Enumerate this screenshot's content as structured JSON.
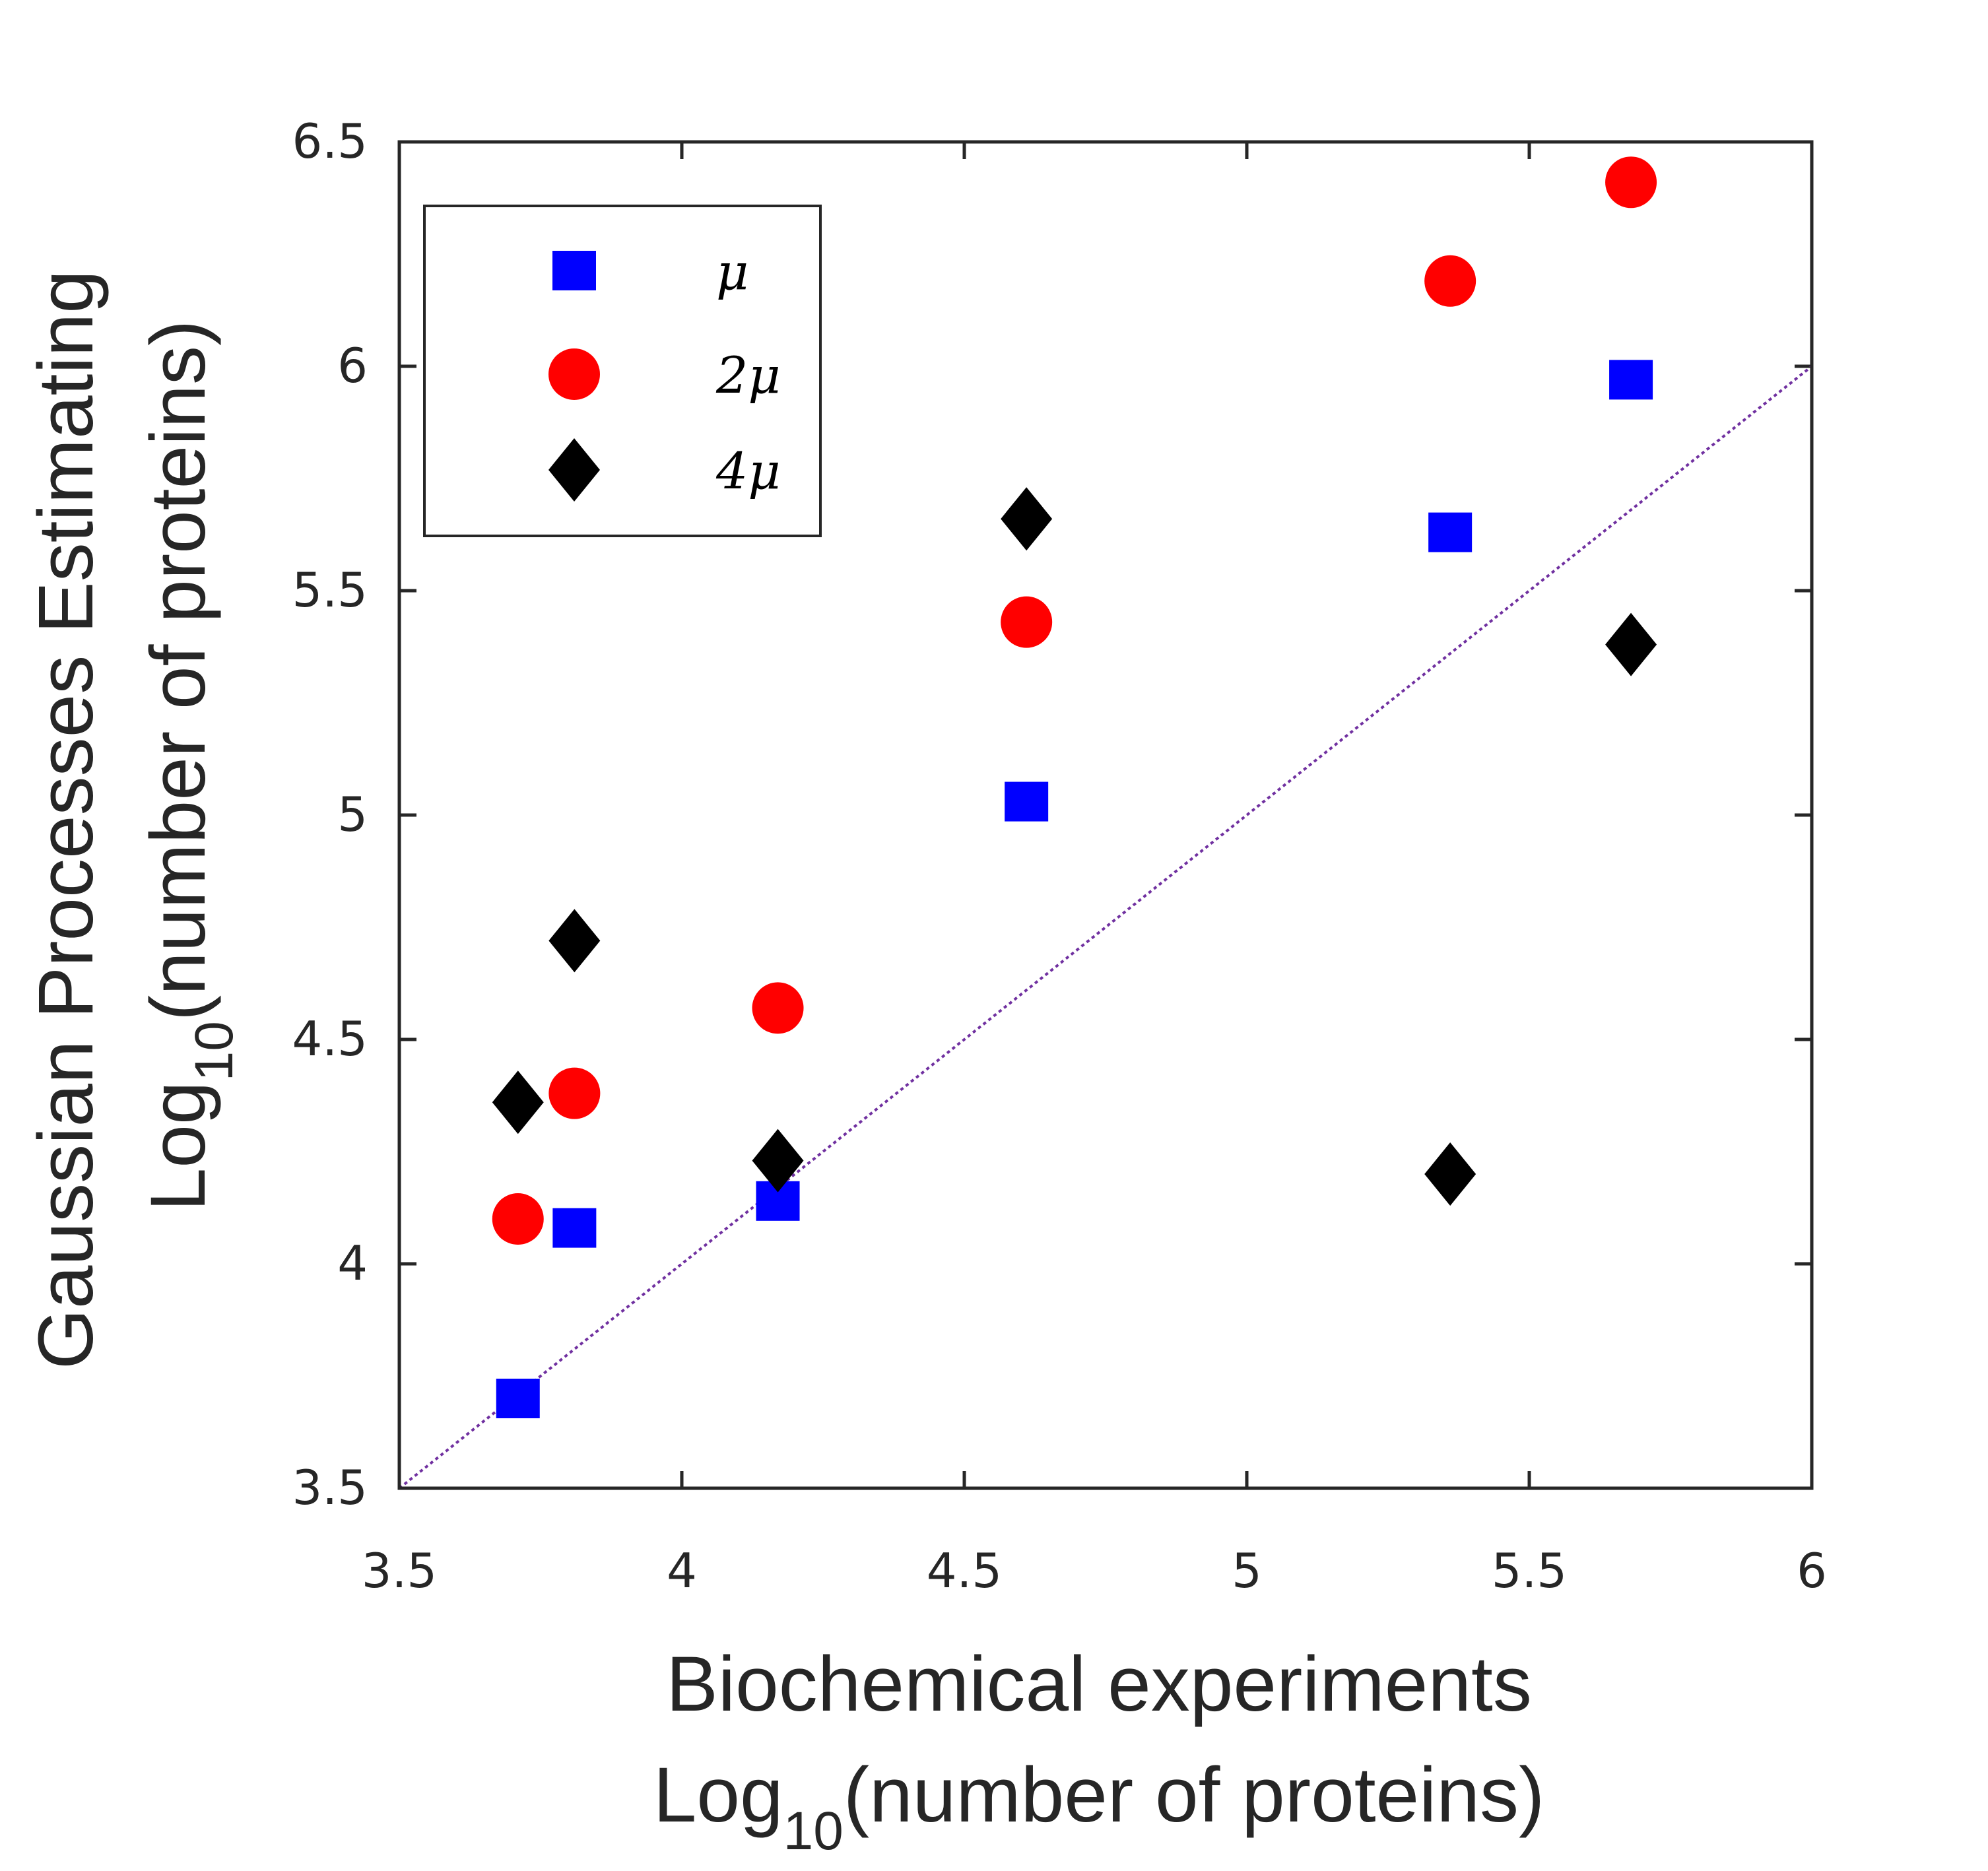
{
  "chart_data": {
    "type": "scatter",
    "title": "",
    "xlabel": {
      "line1": "Biochemical experiments",
      "line2_prefix": "Log",
      "line2_sub": "10",
      "line2_suffix": "(number of proteins)"
    },
    "ylabel": {
      "line1": "Gaussian Processes Estimating",
      "line2_prefix": "Log",
      "line2_sub": "10",
      "line2_suffix": "(number of proteins)"
    },
    "xlim": [
      3.5,
      6
    ],
    "ylim": [
      3.5,
      6.5
    ],
    "xticks": [
      "3.5",
      "4",
      "4.5",
      "5",
      "5.5",
      "6"
    ],
    "yticks": [
      "3.5",
      "4",
      "4.5",
      "5",
      "5.5",
      "6",
      "6.5"
    ],
    "grid": false,
    "legend": {
      "placement": "top-left",
      "box": true
    },
    "reference_line": {
      "from": [
        3.5,
        3.5
      ],
      "to": [
        6,
        6
      ],
      "color": "#7030a0",
      "style": "dotted"
    },
    "series": [
      {
        "name": "μ",
        "marker": "square",
        "color": "#0000ff",
        "points": [
          [
            3.71,
            3.7
          ],
          [
            3.81,
            4.08
          ],
          [
            4.17,
            4.14
          ],
          [
            4.61,
            5.03
          ],
          [
            5.36,
            5.63
          ],
          [
            5.68,
            5.97
          ]
        ]
      },
      {
        "name": "2μ",
        "marker": "circle",
        "color": "#ff0000",
        "points": [
          [
            3.71,
            4.1
          ],
          [
            3.81,
            4.38
          ],
          [
            4.17,
            4.57
          ],
          [
            4.61,
            5.43
          ],
          [
            5.36,
            6.19
          ],
          [
            5.68,
            6.41
          ]
        ]
      },
      {
        "name": "4μ",
        "marker": "diamond",
        "color": "#000000",
        "points": [
          [
            3.71,
            4.36
          ],
          [
            3.81,
            4.72
          ],
          [
            4.17,
            4.23
          ],
          [
            4.61,
            5.66
          ],
          [
            5.36,
            4.2
          ],
          [
            5.68,
            5.38
          ]
        ]
      }
    ]
  }
}
